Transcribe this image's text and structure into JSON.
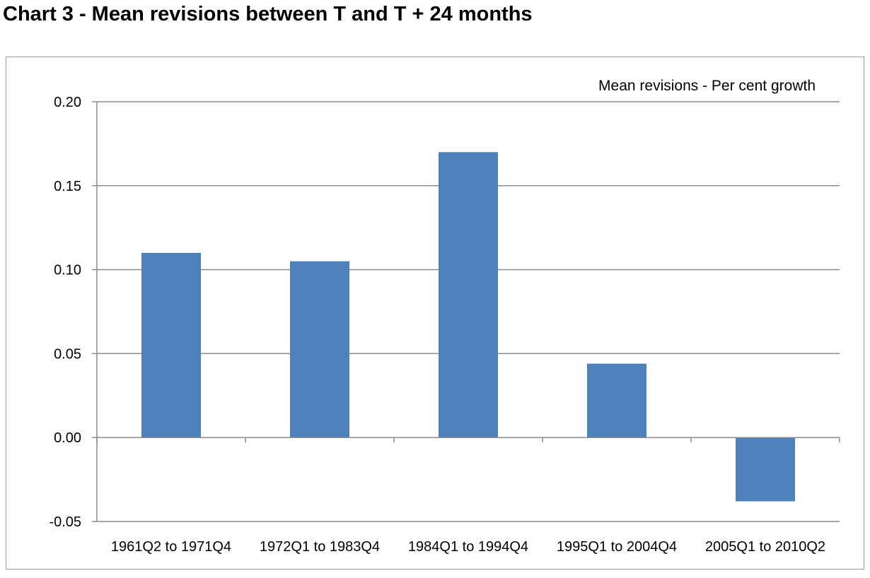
{
  "page": {
    "title": "Chart 3 - Mean revisions between T and T + 24 months"
  },
  "chart_data": {
    "type": "bar",
    "title": "Chart 3 - Mean revisions between T and T + 24 months",
    "annotation": "Mean revisions - Per cent growth",
    "categories": [
      "1961Q2 to 1971Q4",
      "1972Q1 to 1983Q4",
      "1984Q1 to 1994Q4",
      "1995Q1 to 2004Q4",
      "2005Q1 to 2010Q2"
    ],
    "values": [
      0.11,
      0.105,
      0.17,
      0.044,
      -0.038
    ],
    "yticks": [
      "0.20",
      "0.15",
      "0.10",
      "0.05",
      "0.00",
      "-0.05"
    ],
    "ylim": [
      -0.05,
      0.2
    ],
    "grid": true,
    "bar_color": "#4f81bd",
    "grid_color": "#8c8c8c"
  }
}
